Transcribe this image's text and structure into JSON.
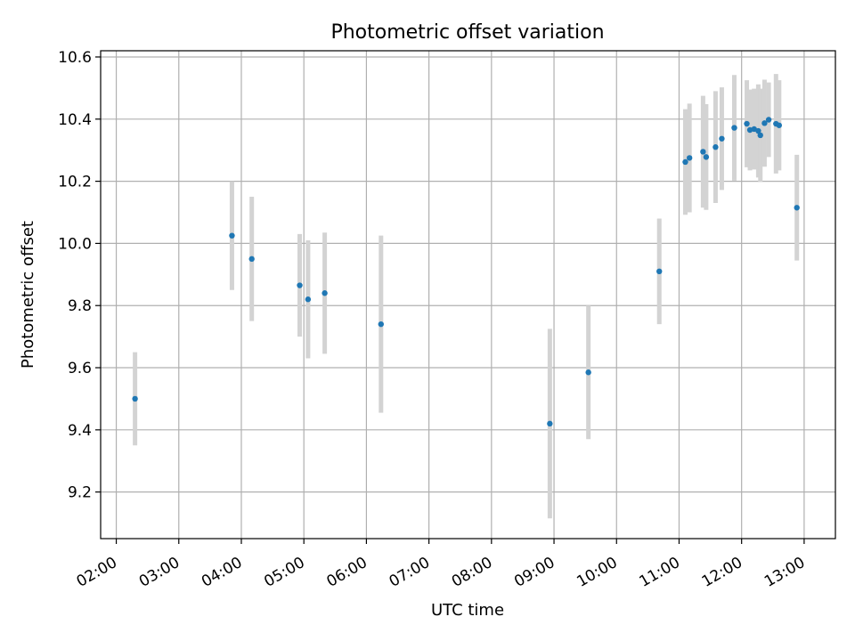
{
  "chart_data": {
    "type": "scatter",
    "title": "Photometric offset variation",
    "xlabel": "UTC time",
    "ylabel": "Photometric offset",
    "x_axis_type": "time",
    "xlim": [
      "01:45",
      "13:30"
    ],
    "ylim": [
      9.05,
      10.62
    ],
    "x_ticks": [
      "02:00",
      "03:00",
      "04:00",
      "05:00",
      "06:00",
      "07:00",
      "08:00",
      "09:00",
      "10:00",
      "11:00",
      "12:00",
      "13:00"
    ],
    "y_ticks": [
      "9.2",
      "9.4",
      "9.6",
      "9.8",
      "10.0",
      "10.2",
      "10.4",
      "10.6"
    ],
    "grid": true,
    "marker_color": "#1f77b4",
    "errorbar_color": "#d3d3d3",
    "points": [
      {
        "x": "02:18",
        "y": 9.5,
        "yerr": 0.15
      },
      {
        "x": "03:51",
        "y": 10.025,
        "yerr": 0.175
      },
      {
        "x": "04:10",
        "y": 9.95,
        "yerr": 0.2
      },
      {
        "x": "04:56",
        "y": 9.865,
        "yerr": 0.165
      },
      {
        "x": "05:04",
        "y": 9.82,
        "yerr": 0.19
      },
      {
        "x": "05:20",
        "y": 9.84,
        "yerr": 0.195
      },
      {
        "x": "06:14",
        "y": 9.74,
        "yerr": 0.285
      },
      {
        "x": "08:56",
        "y": 9.42,
        "yerr": 0.305
      },
      {
        "x": "09:33",
        "y": 9.585,
        "yerr": 0.215
      },
      {
        "x": "10:41",
        "y": 9.91,
        "yerr": 0.17
      },
      {
        "x": "11:06",
        "y": 10.262,
        "yerr": 0.17
      },
      {
        "x": "11:10",
        "y": 10.275,
        "yerr": 0.175
      },
      {
        "x": "11:23",
        "y": 10.295,
        "yerr": 0.18
      },
      {
        "x": "11:26",
        "y": 10.278,
        "yerr": 0.17
      },
      {
        "x": "11:35",
        "y": 10.31,
        "yerr": 0.18
      },
      {
        "x": "11:41",
        "y": 10.337,
        "yerr": 0.165
      },
      {
        "x": "11:53",
        "y": 10.372,
        "yerr": 0.17
      },
      {
        "x": "12:05",
        "y": 10.385,
        "yerr": 0.14
      },
      {
        "x": "12:08",
        "y": 10.365,
        "yerr": 0.13
      },
      {
        "x": "12:12",
        "y": 10.368,
        "yerr": 0.13
      },
      {
        "x": "12:16",
        "y": 10.362,
        "yerr": 0.15
      },
      {
        "x": "12:18",
        "y": 10.348,
        "yerr": 0.15
      },
      {
        "x": "12:22",
        "y": 10.387,
        "yerr": 0.14
      },
      {
        "x": "12:26",
        "y": 10.398,
        "yerr": 0.12
      },
      {
        "x": "12:33",
        "y": 10.385,
        "yerr": 0.16
      },
      {
        "x": "12:36",
        "y": 10.38,
        "yerr": 0.145
      },
      {
        "x": "12:53",
        "y": 10.115,
        "yerr": 0.17
      }
    ]
  }
}
